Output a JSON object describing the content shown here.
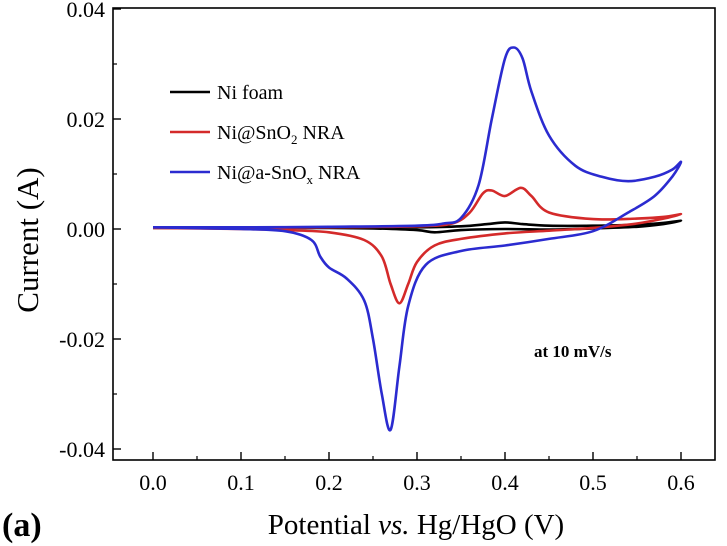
{
  "panel_label": "(a)",
  "chart_data": {
    "type": "line",
    "title": "",
    "xlabel_parts": [
      "Potential ",
      "vs.",
      " Hg/HgO (V)"
    ],
    "ylabel": "Current (A)",
    "xlim": [
      -0.03,
      0.62
    ],
    "ylim": [
      -0.04,
      0.04
    ],
    "xticks": [
      "0.0",
      "0.1",
      "0.2",
      "0.3",
      "0.4",
      "0.5",
      "0.6"
    ],
    "yticks": [
      "0.04",
      "0.02",
      "0.00",
      "-0.02",
      "-0.04"
    ],
    "annotation": "at 10 mV/s",
    "legend_position": "top-left",
    "grid": false,
    "series": [
      {
        "name": "Ni foam",
        "name_parts": [
          "Ni foam"
        ],
        "color": "#000000",
        "points": [
          [
            0.0,
            0.0002
          ],
          [
            0.1,
            0.0002
          ],
          [
            0.2,
            0.0002
          ],
          [
            0.3,
            0.0003
          ],
          [
            0.35,
            0.0005
          ],
          [
            0.38,
            0.0009
          ],
          [
            0.4,
            0.0012
          ],
          [
            0.42,
            0.0009
          ],
          [
            0.45,
            0.0006
          ],
          [
            0.5,
            0.0006
          ],
          [
            0.55,
            0.0008
          ],
          [
            0.58,
            0.0011
          ],
          [
            0.6,
            0.0015
          ],
          [
            0.58,
            0.0009
          ],
          [
            0.55,
            0.0004
          ],
          [
            0.5,
            0.0001
          ],
          [
            0.45,
            -0.0001
          ],
          [
            0.4,
            0.0
          ],
          [
            0.35,
            -0.0002
          ],
          [
            0.32,
            -0.0006
          ],
          [
            0.3,
            -0.0002
          ],
          [
            0.25,
            0.0001
          ],
          [
            0.2,
            0.0002
          ],
          [
            0.1,
            0.0002
          ],
          [
            0.0,
            0.0002
          ]
        ]
      },
      {
        "name": "Ni@SnO2 NRA",
        "name_parts": [
          "Ni@SnO",
          "2",
          " NRA"
        ],
        "color": "#d42a2a",
        "points": [
          [
            0.0,
            0.0002
          ],
          [
            0.1,
            0.0002
          ],
          [
            0.2,
            0.0003
          ],
          [
            0.3,
            0.0005
          ],
          [
            0.34,
            0.001
          ],
          [
            0.36,
            0.003
          ],
          [
            0.375,
            0.0065
          ],
          [
            0.385,
            0.007
          ],
          [
            0.4,
            0.006
          ],
          [
            0.418,
            0.0075
          ],
          [
            0.43,
            0.006
          ],
          [
            0.45,
            0.003
          ],
          [
            0.5,
            0.0018
          ],
          [
            0.55,
            0.0019
          ],
          [
            0.58,
            0.0022
          ],
          [
            0.6,
            0.0027
          ],
          [
            0.58,
            0.0019
          ],
          [
            0.55,
            0.001
          ],
          [
            0.5,
            0.0002
          ],
          [
            0.45,
            -0.0003
          ],
          [
            0.4,
            -0.0008
          ],
          [
            0.35,
            -0.0018
          ],
          [
            0.32,
            -0.003
          ],
          [
            0.3,
            -0.006
          ],
          [
            0.29,
            -0.01
          ],
          [
            0.28,
            -0.0135
          ],
          [
            0.27,
            -0.01
          ],
          [
            0.26,
            -0.005
          ],
          [
            0.24,
            -0.002
          ],
          [
            0.2,
            -0.0006
          ],
          [
            0.15,
            -0.0002
          ],
          [
            0.1,
            0.0
          ],
          [
            0.0,
            0.0002
          ]
        ]
      },
      {
        "name": "Ni@a-SnOx NRA",
        "name_parts": [
          "Ni@a-SnO",
          "x",
          " NRA"
        ],
        "color": "#2b2bd0",
        "points": [
          [
            0.0,
            0.0003
          ],
          [
            0.1,
            0.0003
          ],
          [
            0.2,
            0.0004
          ],
          [
            0.3,
            0.0006
          ],
          [
            0.33,
            0.001
          ],
          [
            0.35,
            0.002
          ],
          [
            0.37,
            0.008
          ],
          [
            0.385,
            0.02
          ],
          [
            0.4,
            0.031
          ],
          [
            0.41,
            0.033
          ],
          [
            0.42,
            0.031
          ],
          [
            0.43,
            0.025
          ],
          [
            0.45,
            0.017
          ],
          [
            0.48,
            0.0115
          ],
          [
            0.51,
            0.0095
          ],
          [
            0.54,
            0.0087
          ],
          [
            0.57,
            0.0095
          ],
          [
            0.59,
            0.0108
          ],
          [
            0.6,
            0.0122
          ],
          [
            0.59,
            0.0095
          ],
          [
            0.57,
            0.006
          ],
          [
            0.54,
            0.003
          ],
          [
            0.5,
            -0.0004
          ],
          [
            0.45,
            -0.0018
          ],
          [
            0.4,
            -0.003
          ],
          [
            0.35,
            -0.004
          ],
          [
            0.31,
            -0.0065
          ],
          [
            0.29,
            -0.014
          ],
          [
            0.28,
            -0.025
          ],
          [
            0.27,
            -0.0365
          ],
          [
            0.26,
            -0.03
          ],
          [
            0.25,
            -0.02
          ],
          [
            0.24,
            -0.013
          ],
          [
            0.22,
            -0.009
          ],
          [
            0.2,
            -0.007
          ],
          [
            0.19,
            -0.005
          ],
          [
            0.18,
            -0.002
          ],
          [
            0.15,
            -0.0004
          ],
          [
            0.1,
            0.0
          ],
          [
            0.0,
            0.0003
          ]
        ]
      }
    ]
  }
}
